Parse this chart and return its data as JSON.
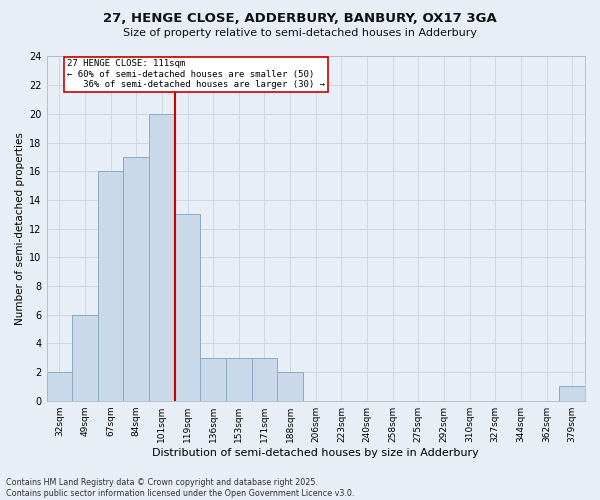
{
  "title1": "27, HENGE CLOSE, ADDERBURY, BANBURY, OX17 3GA",
  "title2": "Size of property relative to semi-detached houses in Adderbury",
  "xlabel": "Distribution of semi-detached houses by size in Adderbury",
  "ylabel": "Number of semi-detached properties",
  "bar_labels": [
    "32sqm",
    "49sqm",
    "67sqm",
    "84sqm",
    "101sqm",
    "119sqm",
    "136sqm",
    "153sqm",
    "171sqm",
    "188sqm",
    "206sqm",
    "223sqm",
    "240sqm",
    "258sqm",
    "275sqm",
    "292sqm",
    "310sqm",
    "327sqm",
    "344sqm",
    "362sqm",
    "379sqm"
  ],
  "bar_values": [
    2,
    6,
    16,
    17,
    20,
    13,
    3,
    3,
    3,
    2,
    0,
    0,
    0,
    0,
    0,
    0,
    0,
    0,
    0,
    0,
    1
  ],
  "bar_color": "#c9d9ea",
  "bar_edgecolor": "#8aaac8",
  "vline_bin_index": 4,
  "annotation_line1": "27 HENGE CLOSE: 111sqm",
  "annotation_line2": "← 60% of semi-detached houses are smaller (50)",
  "annotation_line3": "   36% of semi-detached houses are larger (30) →",
  "annotation_box_color": "#ffffff",
  "annotation_box_edgecolor": "#cc0000",
  "vline_color": "#cc0000",
  "ylim": [
    0,
    24
  ],
  "yticks": [
    0,
    2,
    4,
    6,
    8,
    10,
    12,
    14,
    16,
    18,
    20,
    22,
    24
  ],
  "grid_color": "#ced8e2",
  "bg_color": "#e8eef5",
  "footnote": "Contains HM Land Registry data © Crown copyright and database right 2025.\nContains public sector information licensed under the Open Government Licence v3.0."
}
